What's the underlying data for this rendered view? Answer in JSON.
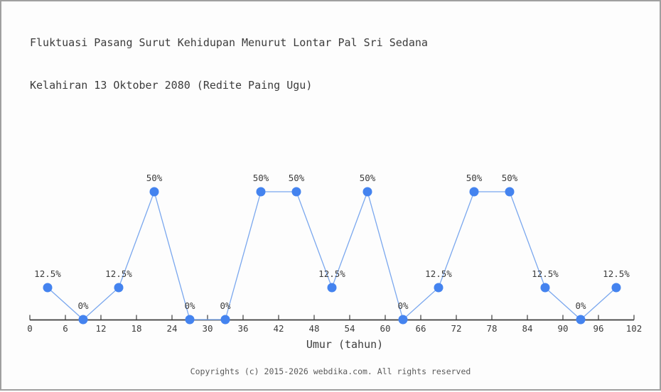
{
  "window": {
    "background": "#fdfdfd",
    "border_color": "#a0a0a0"
  },
  "title": {
    "line1": "Fluktuasi Pasang Surut Kehidupan Menurut Lontar Pal Sri Sedana",
    "line2": "Kelahiran 13 Oktober 2080 (Redite Paing Ugu)"
  },
  "footer": {
    "text": "Copyrights (c) 2015-2026 webdika.com. All rights reserved"
  },
  "chart_data": {
    "type": "line",
    "title": "Fluktuasi Pasang Surut Kehidupan Menurut Lontar Pal Sri Sedana Kelahiran 13 Oktober 2080 (Redite Paing Ugu)",
    "xlabel": "Umur (tahun)",
    "ylabel": "",
    "unit": "%",
    "x": [
      3,
      9,
      15,
      21,
      27,
      33,
      39,
      45,
      51,
      57,
      63,
      69,
      75,
      81,
      87,
      93,
      99
    ],
    "values": [
      12.5,
      0,
      12.5,
      50,
      0,
      0,
      50,
      50,
      12.5,
      50,
      0,
      12.5,
      50,
      50,
      12.5,
      0,
      12.5
    ],
    "point_labels": [
      "12.5%",
      "0%",
      "12.5%",
      "50%",
      "0%",
      "0%",
      "50%",
      "50%",
      "12.5%",
      "50%",
      "0%",
      "12.5%",
      "50%",
      "50%",
      "12.5%",
      "0%",
      "12.5%"
    ],
    "x_ticks": [
      0,
      6,
      12,
      18,
      24,
      30,
      36,
      42,
      48,
      54,
      60,
      66,
      72,
      78,
      84,
      90,
      96,
      102
    ],
    "xlim": [
      0,
      102
    ],
    "ylim": [
      0,
      62.5
    ],
    "grid": false,
    "legend": null,
    "colors": {
      "point": "#4483ef",
      "line": "#7aa7ee",
      "axis": "#3c3c3c",
      "text": "#3c3c3c",
      "footer_text": "#5a5a5a"
    }
  }
}
